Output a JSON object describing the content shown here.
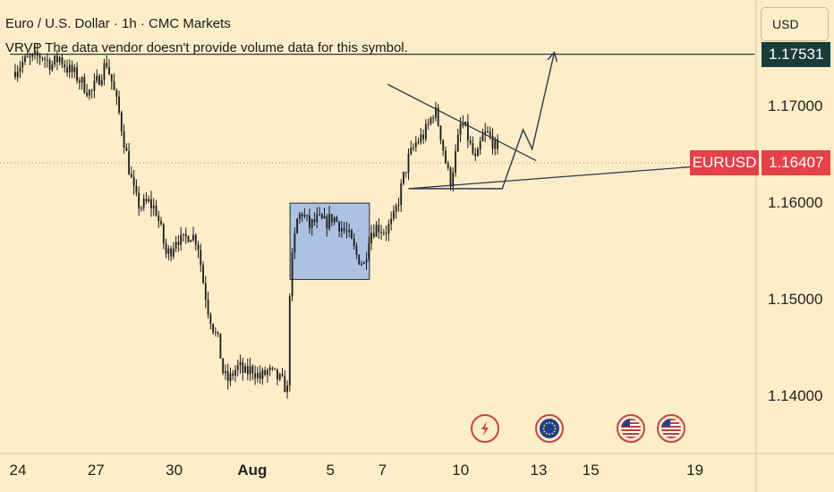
{
  "header": {
    "title": "Euro / U.S. Dollar · 1h · CMC Markets",
    "vendor_note": "VRVP The data vendor doesn't provide volume data for this symbol."
  },
  "currency_button": {
    "label": "USD"
  },
  "price_tags": {
    "resistance": "1.17531",
    "symbol": "EURUSD",
    "last_price": "1.16407"
  },
  "chart_data": {
    "type": "candlestick",
    "symbol": "EURUSD",
    "timeframe": "1h",
    "ylim": [
      1.1335,
      1.1805
    ],
    "y_ticks": [
      "1.17000",
      "1.16000",
      "1.15000",
      "1.14000"
    ],
    "y_tick_values": [
      1.17,
      1.16,
      1.15,
      1.14
    ],
    "x_ticks": [
      "24",
      "27",
      "30",
      "Aug",
      "5",
      "7",
      "10",
      "13",
      "15",
      "19"
    ],
    "x_tick_days": [
      0,
      3,
      6,
      9,
      12,
      14,
      17,
      20,
      22,
      26
    ],
    "last_price": 1.16407,
    "resistance_level": 1.17531,
    "price_path": [
      [
        -0.2,
        1.1735
      ],
      [
        0.2,
        1.1745
      ],
      [
        0.5,
        1.1748
      ],
      [
        0.9,
        1.1752
      ],
      [
        1.3,
        1.1742
      ],
      [
        1.6,
        1.175
      ],
      [
        1.9,
        1.1738
      ],
      [
        2.2,
        1.1732
      ],
      [
        2.5,
        1.1722
      ],
      [
        2.8,
        1.1712
      ],
      [
        3.1,
        1.1728
      ],
      [
        3.4,
        1.1745
      ],
      [
        3.6,
        1.1725
      ],
      [
        3.9,
        1.169
      ],
      [
        4.1,
        1.166
      ],
      [
        4.3,
        1.163
      ],
      [
        4.5,
        1.1605
      ],
      [
        4.7,
        1.1595
      ],
      [
        5.0,
        1.16
      ],
      [
        5.3,
        1.1592
      ],
      [
        5.5,
        1.157
      ],
      [
        5.7,
        1.1545
      ],
      [
        5.9,
        1.1552
      ],
      [
        6.1,
        1.1565
      ],
      [
        6.3,
        1.1558
      ],
      [
        6.6,
        1.1568
      ],
      [
        6.9,
        1.156
      ],
      [
        7.1,
        1.152
      ],
      [
        7.3,
        1.149
      ],
      [
        7.5,
        1.147
      ],
      [
        7.7,
        1.1455
      ],
      [
        7.9,
        1.142
      ],
      [
        8.1,
        1.1415
      ],
      [
        8.3,
        1.1425
      ],
      [
        8.5,
        1.143
      ],
      [
        8.7,
        1.1422
      ],
      [
        9.0,
        1.1428
      ],
      [
        9.3,
        1.1418
      ],
      [
        9.6,
        1.1425
      ],
      [
        9.9,
        1.142
      ],
      [
        10.2,
        1.1412
      ],
      [
        10.35,
        1.1405
      ],
      [
        10.45,
        1.152
      ],
      [
        10.7,
        1.158
      ],
      [
        10.9,
        1.159
      ],
      [
        11.2,
        1.1575
      ],
      [
        11.5,
        1.1582
      ],
      [
        11.8,
        1.1578
      ],
      [
        12.1,
        1.1585
      ],
      [
        12.4,
        1.1575
      ],
      [
        12.7,
        1.1565
      ],
      [
        13.0,
        1.1545
      ],
      [
        13.3,
        1.1535
      ],
      [
        13.5,
        1.1568
      ],
      [
        13.8,
        1.1575
      ],
      [
        14.1,
        1.157
      ],
      [
        14.4,
        1.158
      ],
      [
        14.6,
        1.16
      ],
      [
        14.8,
        1.1625
      ],
      [
        15.0,
        1.1645
      ],
      [
        15.3,
        1.1662
      ],
      [
        15.6,
        1.167
      ],
      [
        15.8,
        1.1682
      ],
      [
        16.0,
        1.1697
      ],
      [
        16.2,
        1.1675
      ],
      [
        16.4,
        1.1645
      ],
      [
        16.6,
        1.162
      ],
      [
        16.8,
        1.1648
      ],
      [
        17.0,
        1.168
      ],
      [
        17.2,
        1.1675
      ],
      [
        17.4,
        1.1655
      ],
      [
        17.6,
        1.164
      ],
      [
        17.8,
        1.1665
      ],
      [
        18.0,
        1.1672
      ],
      [
        18.3,
        1.166
      ],
      [
        18.5,
        1.164
      ]
    ],
    "drawings": {
      "rectangle": {
        "x": [
          10.45,
          13.5
        ],
        "y": [
          1.152,
          1.1599
        ]
      },
      "resistance_line": {
        "x": [
          -0.3,
          28.3
        ],
        "y": [
          1.17531,
          1.17531
        ]
      },
      "upper_trendline": {
        "x": [
          14.2,
          19.9
        ],
        "y": [
          1.1722,
          1.1643
        ]
      },
      "lower_trendline": {
        "x": [
          15.0,
          27.5
        ],
        "y": [
          1.1614,
          1.164
        ]
      },
      "projection": {
        "x": [
          15.0,
          18.6,
          19.4,
          19.75,
          20.6
        ],
        "y": [
          1.1614,
          1.1614,
          1.1675,
          1.1655,
          1.1755
        ]
      }
    }
  },
  "events": [
    {
      "icon": "lightning-icon",
      "color": "#c44545"
    },
    {
      "icon": "eu-flag-icon",
      "color": "#c44545"
    },
    {
      "icon": "us-flag-icon",
      "color": "#c44545"
    },
    {
      "icon": "us-flag-icon",
      "color": "#c44545"
    }
  ]
}
